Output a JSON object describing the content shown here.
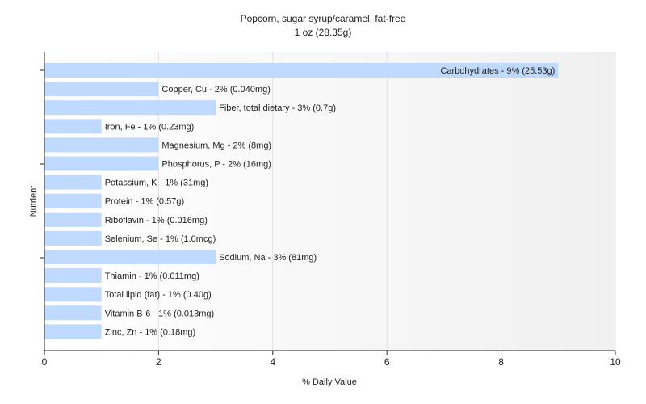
{
  "chart_data": {
    "type": "bar",
    "orientation": "horizontal",
    "title": "Popcorn, sugar syrup/caramel, fat-free",
    "subtitle": "1 oz (28.35g)",
    "xlabel": "% Daily Value",
    "ylabel": "Nutrient",
    "xlim": [
      0,
      10
    ],
    "xticks": [
      0,
      2,
      4,
      6,
      8,
      10
    ],
    "grid": true,
    "bar_color": "#bfd9ff",
    "categories": [
      "Carbohydrates",
      "Copper, Cu",
      "Fiber, total dietary",
      "Iron, Fe",
      "Magnesium, Mg",
      "Phosphorus, P",
      "Potassium, K",
      "Protein",
      "Riboflavin",
      "Selenium, Se",
      "Sodium, Na",
      "Thiamin",
      "Total lipid (fat)",
      "Vitamin B-6",
      "Zinc, Zn"
    ],
    "values": [
      9,
      2,
      3,
      1,
      2,
      2,
      1,
      1,
      1,
      1,
      3,
      1,
      1,
      1,
      1
    ],
    "labels": [
      "Carbohydrates - 9% (25.53g)",
      "Copper, Cu - 2% (0.040mg)",
      "Fiber, total dietary - 3% (0.7g)",
      "Iron, Fe - 1% (0.23mg)",
      "Magnesium, Mg - 2% (8mg)",
      "Phosphorus, P - 2% (16mg)",
      "Potassium, K - 1% (31mg)",
      "Protein - 1% (0.57g)",
      "Riboflavin - 1% (0.016mg)",
      "Selenium, Se - 1% (1.0mcg)",
      "Sodium, Na - 3% (81mg)",
      "Thiamin - 1% (0.011mg)",
      "Total lipid (fat) - 1% (0.40g)",
      "Vitamin B-6 - 1% (0.013mg)",
      "Zinc, Zn - 1% (0.18mg)"
    ]
  }
}
